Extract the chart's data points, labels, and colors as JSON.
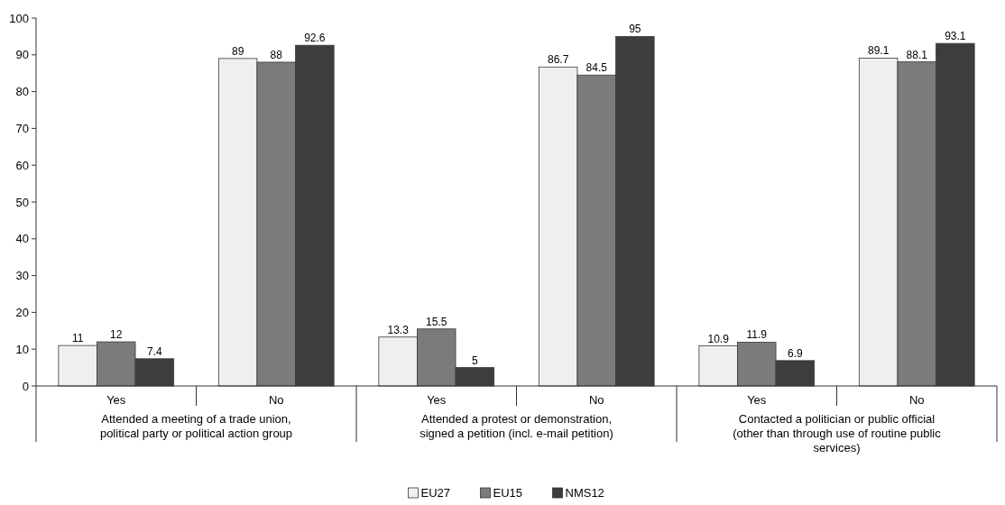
{
  "chart_data": {
    "type": "bar",
    "categories": [
      "Yes",
      "No",
      "Yes",
      "No",
      "Yes",
      "No"
    ],
    "series": [
      {
        "name": "EU27",
        "color": "#efeff0",
        "values": [
          11,
          89,
          13.3,
          86.7,
          10.9,
          89.1
        ]
      },
      {
        "name": "EU15",
        "color": "#7b7b7e",
        "values": [
          12,
          88,
          15.5,
          84.5,
          11.9,
          88.1
        ]
      },
      {
        "name": "NMS12",
        "color": "#3d3d3d",
        "values": [
          7.4,
          92.6,
          5,
          95,
          6.9,
          93.1
        ]
      }
    ],
    "ylim": [
      0,
      100
    ],
    "yticks": [
      0,
      10,
      20,
      30,
      40,
      50,
      60,
      70,
      80,
      90,
      100
    ],
    "grid": false,
    "data_labels": true,
    "legend": "bottom",
    "annotations": [
      "Attended a meeting of a trade union, political party or political action group",
      "Attended a protest or demonstration, signed a petition (incl. e-mail petition)",
      "Contacted a politician or public official (other than through use of routine public services)"
    ]
  }
}
